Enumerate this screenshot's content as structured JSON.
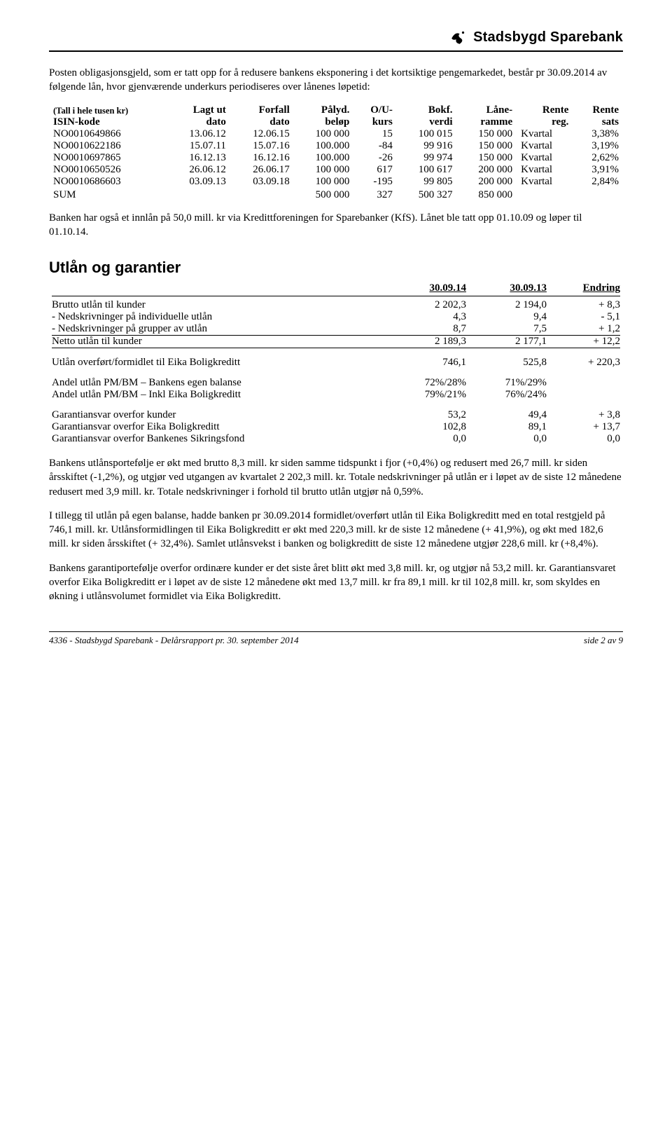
{
  "brand": "Stadsbygd Sparebank",
  "intro": {
    "p1": "Posten obligasjonsgjeld, som er tatt opp for å redusere bankens eksponering i det kortsiktige pengemarkedet, består pr 30.09.2014 av følgende lån, hvor gjenværende underkurs periodiseres over lånenes løpetid:"
  },
  "loanTable": {
    "hdr1": [
      "(Tall i hele tusen kr)",
      "Lagt ut",
      "Forfall",
      "Pålyd.",
      "O/U-",
      "Bokf.",
      "Låne-",
      "Rente",
      "Rente"
    ],
    "hdr2": [
      "ISIN-kode",
      "dato",
      "dato",
      "beløp",
      "kurs",
      "verdi",
      "ramme",
      "reg.",
      "sats"
    ],
    "rows": [
      [
        "NO0010649866",
        "13.06.12",
        "12.06.15",
        "100 000",
        "15",
        "100 015",
        "150 000",
        "Kvartal",
        "3,38%"
      ],
      [
        "NO0010622186",
        "15.07.11",
        "15.07.16",
        "100.000",
        "-84",
        "99 916",
        "150 000",
        "Kvartal",
        "3,19%"
      ],
      [
        "NO0010697865",
        "16.12.13",
        "16.12.16",
        "100.000",
        "-26",
        "99 974",
        "150 000",
        "Kvartal",
        "2,62%"
      ],
      [
        "NO0010650526",
        "26.06.12",
        "26.06.17",
        "100 000",
        "617",
        "100 617",
        "200 000",
        "Kvartal",
        "3,91%"
      ],
      [
        "NO0010686603",
        "03.09.13",
        "03.09.18",
        "100 000",
        "-195",
        "99 805",
        "200 000",
        "Kvartal",
        "2,84%"
      ]
    ],
    "sum": [
      "SUM",
      "",
      "",
      "500 000",
      "327",
      "500 327",
      "850 000",
      "",
      ""
    ]
  },
  "afterLoan": "Banken har også et innlån på 50,0 mill. kr via Kredittforeningen for Sparebanker (KfS). Lånet ble tatt opp 01.10.09 og løper til 01.10.14.",
  "sectionTitle": "Utlån og garantier",
  "finTable": {
    "head": [
      "",
      "30.09.14",
      "30.09.13",
      "Endring"
    ],
    "rows1": [
      [
        "Brutto utlån til kunder",
        "2 202,3",
        "2 194,0",
        "+ 8,3"
      ],
      [
        "- Nedskrivninger på individuelle utlån",
        "4,3",
        "9,4",
        "- 5,1"
      ],
      [
        "- Nedskrivninger på grupper av utlån",
        "8,7",
        "7,5",
        "+ 1,2"
      ]
    ],
    "net": [
      "Netto utlån til kunder",
      "2 189,3",
      "2 177,1",
      "+ 12,2"
    ],
    "rows2": [
      [
        "Utlån overført/formidlet til Eika Boligkreditt",
        "746,1",
        "525,8",
        "+ 220,3"
      ]
    ],
    "rows3": [
      [
        "Andel utlån PM/BM – Bankens egen balanse",
        "72%/28%",
        "71%/29%",
        ""
      ],
      [
        "Andel utlån PM/BM – Inkl Eika Boligkreditt",
        "79%/21%",
        "76%/24%",
        ""
      ]
    ],
    "rows4": [
      [
        "Garantiansvar overfor kunder",
        "53,2",
        "49,4",
        "+ 3,8"
      ],
      [
        "Garantiansvar overfor Eika Boligkreditt",
        "102,8",
        "89,1",
        "+ 13,7"
      ],
      [
        "Garantiansvar overfor Bankenes Sikringsfond",
        "0,0",
        "0,0",
        "0,0"
      ]
    ]
  },
  "body": {
    "p1": "Bankens utlånsportefølje er økt med brutto 8,3 mill. kr siden samme tidspunkt i fjor (+0,4%) og redusert med 26,7 mill. kr siden årsskiftet (-1,2%), og utgjør ved utgangen av kvartalet 2 202,3 mill. kr. Totale nedskrivninger på utlån er i løpet av de siste 12 månedene redusert med 3,9 mill. kr. Totale nedskrivninger i forhold til brutto utlån utgjør nå 0,59%.",
    "p2": "I tillegg til utlån på egen balanse, hadde banken pr 30.09.2014 formidlet/overført utlån til Eika Boligkreditt med en total restgjeld på 746,1 mill. kr. Utlånsformidlingen til Eika Boligkreditt er økt med 220,3 mill. kr de siste 12 månedene (+ 41,9%), og økt med 182,6 mill. kr siden årsskiftet (+ 32,4%).  Samlet utlånsvekst i banken og boligkreditt de siste 12 månedene utgjør 228,6 mill. kr (+8,4%).",
    "p3": "Bankens garantiportefølje overfor ordinære kunder er det siste året blitt økt  med 3,8 mill. kr, og utgjør nå 53,2 mill. kr. Garantiansvaret overfor Eika Boligkreditt er i løpet av de siste 12 månedene økt med 13,7 mill. kr fra 89,1 mill. kr til 102,8 mill. kr, som skyldes en økning i utlånsvolumet formidlet via Eika Boligkreditt."
  },
  "footer": {
    "left": "4336  -  Stadsbygd Sparebank  -  Delårsrapport pr. 30. september 2014",
    "right": "side 2 av 9"
  }
}
